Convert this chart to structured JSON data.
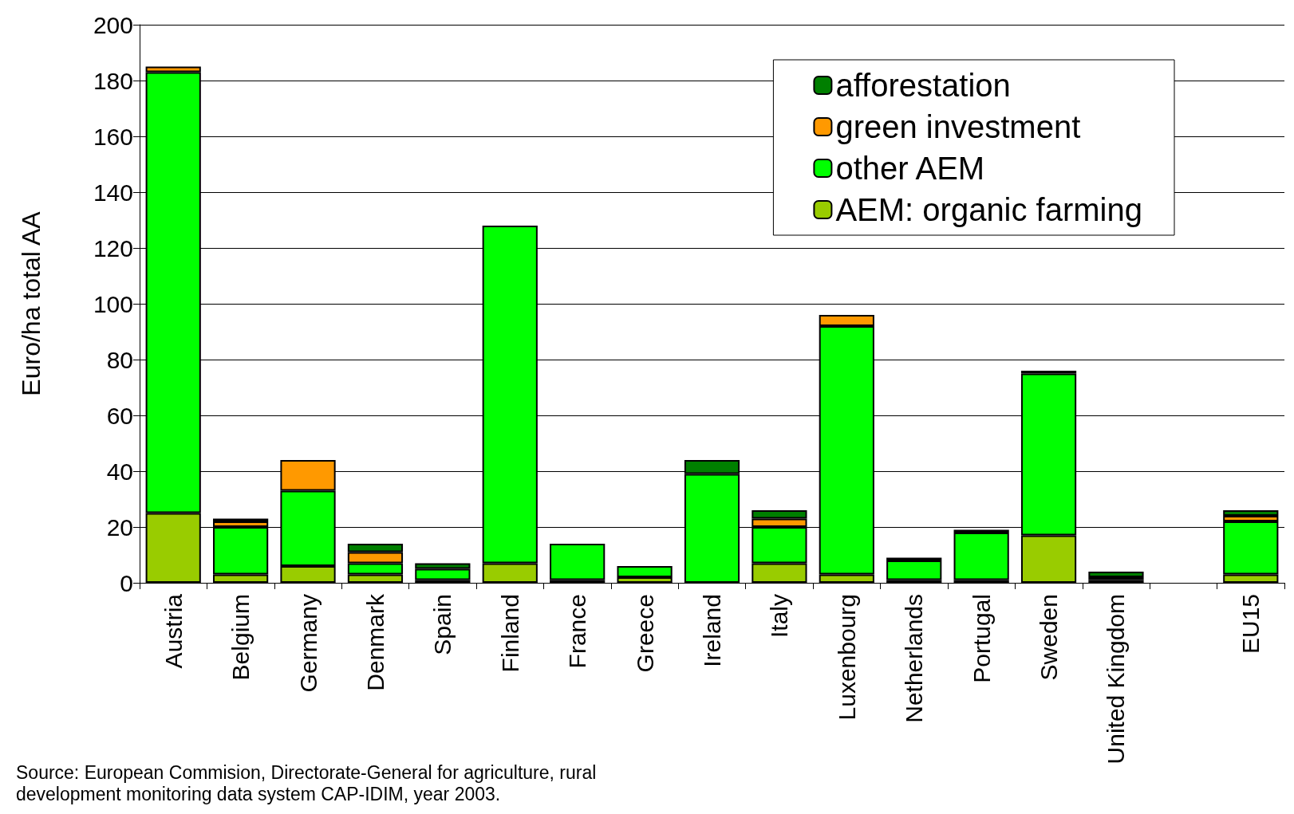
{
  "chart_data": {
    "type": "bar",
    "stacked": true,
    "ylabel": "Euro/ha total AA",
    "categories": [
      "Austria",
      "Belgium",
      "Germany",
      "Denmark",
      "Spain",
      "Finland",
      "France",
      "Greece",
      "Ireland",
      "Italy",
      "Luxenbourg",
      "Netherlands",
      "Portugal",
      "Sweden",
      "United Kingdom",
      null,
      "EU15"
    ],
    "series": [
      {
        "name": "AEM: organic farming",
        "color": "#99cc00",
        "values": [
          25,
          3,
          6,
          3,
          1,
          7,
          1,
          2,
          null,
          7,
          3,
          1,
          1,
          17,
          1,
          null,
          3
        ]
      },
      {
        "name": "other AEM",
        "color": "#00ff00",
        "values": [
          158,
          17,
          27,
          4,
          4,
          121,
          13,
          4,
          39,
          13,
          89,
          7,
          17,
          58,
          1,
          null,
          19
        ]
      },
      {
        "name": "green investment",
        "color": "#ff9900",
        "values": [
          2,
          2,
          11,
          4,
          null,
          null,
          null,
          null,
          null,
          3,
          4,
          null,
          null,
          null,
          null,
          null,
          2
        ]
      },
      {
        "name": "afforestation",
        "color": "#007f00",
        "values": [
          null,
          1,
          null,
          3,
          2,
          null,
          null,
          null,
          5,
          3,
          null,
          1,
          1,
          1,
          2,
          null,
          2
        ]
      }
    ],
    "ylim": [
      0,
      200
    ],
    "yticks": [
      0,
      20,
      40,
      60,
      80,
      100,
      120,
      140,
      160,
      180,
      200
    ],
    "grid": "y",
    "legend": "top right",
    "annotations": [
      "Source: European Commision, Directorate-General for agriculture, rural development monitoring data system CAP-IDIM, year 2003."
    ]
  }
}
